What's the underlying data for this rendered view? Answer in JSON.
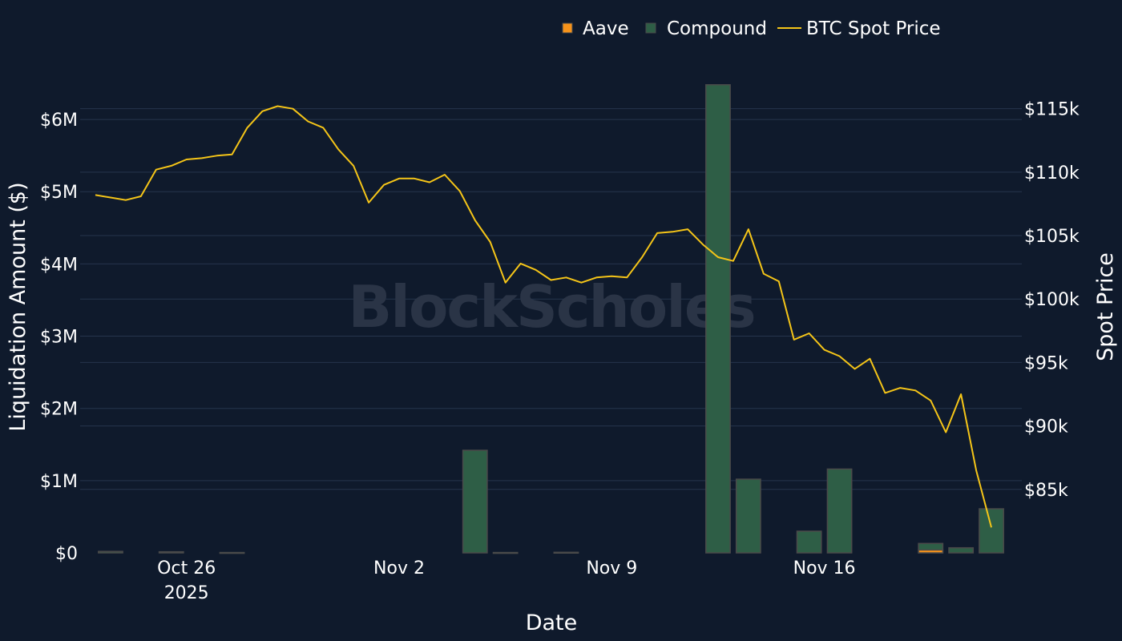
{
  "watermark": "BlockScholes",
  "colors": {
    "background": "#0f1a2c",
    "grid": "#26344d",
    "aave": "#f7931a",
    "compound": "#2e5e46",
    "compound_edge": "#4a4a4a",
    "btc": "#f5c518"
  },
  "chart_data": {
    "type": "bar+line",
    "xlabel": "Date",
    "ylabel_left": "Liquidation Amount ($)",
    "ylabel_right": "Spot Price",
    "x_ticks": [
      "Oct 26\n2025",
      "Nov 2",
      "Nov 9",
      "Nov 16"
    ],
    "x_tick_dates": [
      "2025-10-26",
      "2025-11-02",
      "2025-11-09",
      "2025-11-16"
    ],
    "x_range": [
      "2025-10-23",
      "2025-11-22"
    ],
    "ylim_left": [
      0,
      6500000
    ],
    "left_ticks": [
      "$0",
      "$1M",
      "$2M",
      "$3M",
      "$4M",
      "$5M",
      "$6M"
    ],
    "left_tick_values": [
      0,
      1000000,
      2000000,
      3000000,
      4000000,
      5000000,
      6000000
    ],
    "ylim_right": [
      80000,
      117000
    ],
    "right_ticks": [
      "$85k",
      "$90k",
      "$95k",
      "$100k",
      "$105k",
      "$110k",
      "$115k"
    ],
    "right_tick_values": [
      85000,
      90000,
      95000,
      100000,
      105000,
      110000,
      115000
    ],
    "legend": {
      "position": "top",
      "items": [
        {
          "name": "Aave",
          "type": "bar",
          "color": "#f7931a"
        },
        {
          "name": "Compound",
          "type": "bar",
          "color": "#2e5e46"
        },
        {
          "name": "BTC Spot Price",
          "type": "line",
          "color": "#f5c518"
        }
      ]
    },
    "bar_series": [
      {
        "name": "Compound",
        "dates": [
          "2025-10-23",
          "2025-10-25",
          "2025-10-27",
          "2025-11-04",
          "2025-11-05",
          "2025-11-07",
          "2025-11-12",
          "2025-11-13",
          "2025-11-15",
          "2025-11-16",
          "2025-11-19",
          "2025-11-20",
          "2025-11-21"
        ],
        "values": [
          20000,
          15000,
          5000,
          1420000,
          5000,
          8000,
          6480000,
          1020000,
          300000,
          1160000,
          130000,
          70000,
          610000
        ]
      },
      {
        "name": "Aave",
        "dates": [
          "2025-11-19"
        ],
        "values": [
          40000
        ]
      }
    ],
    "line_series": {
      "name": "BTC Spot Price",
      "dates": [
        "2025-10-23",
        "2025-10-23T12:00",
        "2025-10-24",
        "2025-10-24T12:00",
        "2025-10-25",
        "2025-10-25T12:00",
        "2025-10-26",
        "2025-10-26T12:00",
        "2025-10-27",
        "2025-10-27T12:00",
        "2025-10-28",
        "2025-10-28T12:00",
        "2025-10-29",
        "2025-10-29T12:00",
        "2025-10-30",
        "2025-10-30T12:00",
        "2025-10-31",
        "2025-10-31T12:00",
        "2025-11-01",
        "2025-11-01T12:00",
        "2025-11-02",
        "2025-11-02T12:00",
        "2025-11-03",
        "2025-11-03T12:00",
        "2025-11-04",
        "2025-11-04T12:00",
        "2025-11-05",
        "2025-11-05T12:00",
        "2025-11-06",
        "2025-11-06T12:00",
        "2025-11-07",
        "2025-11-07T12:00",
        "2025-11-08",
        "2025-11-08T12:00",
        "2025-11-09",
        "2025-11-09T12:00",
        "2025-11-10",
        "2025-11-10T12:00",
        "2025-11-11",
        "2025-11-11T12:00",
        "2025-11-12",
        "2025-11-12T12:00",
        "2025-11-13",
        "2025-11-13T12:00",
        "2025-11-14",
        "2025-11-14T12:00",
        "2025-11-15",
        "2025-11-15T12:00",
        "2025-11-16",
        "2025-11-16T12:00",
        "2025-11-17",
        "2025-11-17T12:00",
        "2025-11-18",
        "2025-11-18T12:00",
        "2025-11-19",
        "2025-11-19T12:00",
        "2025-11-20",
        "2025-11-20T12:00",
        "2025-11-21",
        "2025-11-21T12:00"
      ],
      "values": [
        108200,
        108000,
        107800,
        108100,
        110200,
        110500,
        111000,
        111100,
        111300,
        111400,
        113500,
        114800,
        115200,
        115000,
        114000,
        113500,
        111800,
        110500,
        107600,
        109000,
        109500,
        109500,
        109200,
        109800,
        108500,
        106200,
        104500,
        101300,
        102800,
        102300,
        101500,
        101700,
        101300,
        101700,
        101800,
        101700,
        103300,
        105200,
        105300,
        105500,
        104300,
        103300,
        103000,
        105500,
        102000,
        101400,
        96800,
        97300,
        96000,
        95500,
        94500,
        95300,
        92600,
        93000,
        92800,
        92000,
        89500,
        92500,
        86500,
        82000
      ]
    }
  }
}
